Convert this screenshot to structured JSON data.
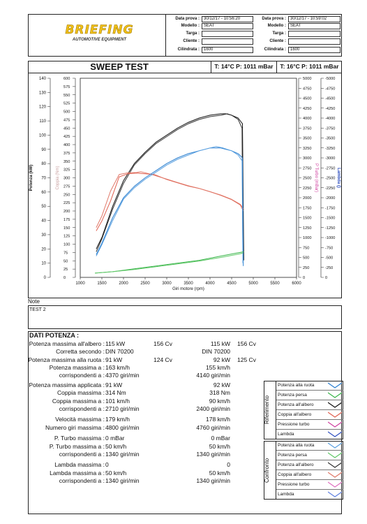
{
  "header": {
    "logo_text": "BRIEFING",
    "logo_sub": "AUTOMOTIVE EQUIPMENT",
    "labels": {
      "data": "Data prova :",
      "modello": "Modello :",
      "targa": "Targa :",
      "cliente": "Cliente :",
      "cilindrata": "Cilindrata :"
    },
    "test1": {
      "data": "30/12/17 - 10:56:20",
      "modello": "SEAT",
      "targa": "",
      "cliente": "",
      "cilindrata": "1600"
    },
    "test2": {
      "data": "30/12/17 - 10:59:02",
      "modello": "SEAT",
      "targa": "",
      "cliente": "",
      "cilindrata": "1600"
    }
  },
  "title": {
    "text": "SWEEP TEST",
    "cond1": "T: 14°C P: 1011 mBar",
    "cond2": "T: 16°C P: 1011 mBar"
  },
  "chart_data": {
    "type": "line",
    "xlabel": "Giri motore (rpm)",
    "xlim": [
      1000,
      6000
    ],
    "x_ticks": [
      "1000",
      "1500",
      "2000",
      "2500",
      "3000",
      "3500",
      "4000",
      "4500",
      "5000",
      "5500",
      "6000"
    ],
    "axes": {
      "potenza": {
        "label": "Potenza (kW)",
        "ticks": [
          "0",
          "10",
          "20",
          "30",
          "40",
          "50",
          "60",
          "70",
          "80",
          "90",
          "100",
          "110",
          "120",
          "130",
          "140"
        ],
        "ylim": [
          0,
          140
        ]
      },
      "coppia": {
        "label": "Coppia (Nm)",
        "ticks": [
          "0",
          "25",
          "50",
          "75",
          "100",
          "125",
          "150",
          "175",
          "200",
          "225",
          "250",
          "275",
          "300",
          "325",
          "350",
          "375",
          "400",
          "425",
          "450",
          "475",
          "500",
          "525",
          "550",
          "575",
          "600"
        ],
        "ylim": [
          0,
          600
        ]
      },
      "pturbo": {
        "label": "P Turbo (mBar)",
        "ticks": [
          "0",
          "250",
          "500",
          "750",
          "1000",
          "1250",
          "1500",
          "1750",
          "2000",
          "2250",
          "2500",
          "2750",
          "3000",
          "3250",
          "3500",
          "3750",
          "4000",
          "4250",
          "4500",
          "4750",
          "5000"
        ],
        "ylim": [
          0,
          5000
        ]
      },
      "lambda": {
        "label": "Lambda ()",
        "ticks": [
          "0",
          "-250",
          "-500",
          "-750",
          "-1000",
          "-1250",
          "-1500",
          "-1750",
          "-2000",
          "-2250",
          "-2500",
          "-2750",
          "-3000",
          "-3250",
          "-3500",
          "-3750",
          "-4000",
          "-4250",
          "-4500",
          "-4750",
          "-5000"
        ],
        "ylim": [
          0,
          -5000
        ]
      }
    },
    "series": [
      {
        "name": "Potenza all'albero",
        "axis": "potenza",
        "color": "#111111",
        "x": [
          1370,
          1500,
          1750,
          2000,
          2250,
          2500,
          2750,
          3000,
          3250,
          3500,
          3750,
          4000,
          4250,
          4370,
          4500,
          4650,
          4750,
          4780
        ],
        "y": [
          20,
          28,
          50,
          68,
          80,
          88,
          95,
          100,
          105,
          109,
          112,
          114,
          115,
          115,
          114,
          112,
          108,
          12
        ]
      },
      {
        "name": "Potenza all'albero (confronto)",
        "axis": "potenza",
        "color": "#333333",
        "x": [
          1370,
          1500,
          1750,
          2000,
          2250,
          2500,
          2750,
          3000,
          3250,
          3500,
          3750,
          4000,
          4250,
          4400,
          4500,
          4650,
          4740,
          4760
        ],
        "y": [
          18,
          27,
          48,
          66,
          79,
          87,
          94,
          99,
          104,
          108,
          111,
          113,
          114,
          115,
          114,
          111,
          105,
          15
        ]
      },
      {
        "name": "Coppia all'albero",
        "axis": "coppia",
        "color": "#e06050",
        "x": [
          1370,
          1500,
          1700,
          1900,
          2100,
          2300,
          2500,
          2710,
          3000,
          3250,
          3500,
          3750,
          4000,
          4250,
          4500,
          4700,
          4780
        ],
        "y": [
          140,
          170,
          230,
          303,
          312,
          314,
          312,
          310,
          295,
          285,
          275,
          268,
          258,
          248,
          235,
          220,
          205
        ]
      },
      {
        "name": "Coppia all'albero (confronto)",
        "axis": "coppia",
        "color": "#e07868",
        "x": [
          1370,
          1500,
          1700,
          1900,
          2100,
          2300,
          2400,
          2600,
          3000,
          3250,
          3500,
          3750,
          4000,
          4250,
          4500,
          4700,
          4770
        ],
        "y": [
          150,
          185,
          260,
          310,
          315,
          316,
          318,
          312,
          296,
          286,
          276,
          268,
          258,
          247,
          234,
          218,
          200
        ]
      },
      {
        "name": "Potenza alla ruota",
        "axis": "potenza",
        "color": "#2a7fd0",
        "x": [
          1370,
          1500,
          1750,
          2000,
          2250,
          2500,
          2750,
          3000,
          3250,
          3500,
          3750,
          4000,
          4250,
          4370,
          4500,
          4650,
          4750,
          4770
        ],
        "y": [
          16,
          24,
          42,
          56,
          64,
          70,
          75,
          80,
          84,
          87,
          89,
          91,
          91,
          90,
          89,
          87,
          84,
          8
        ]
      },
      {
        "name": "Potenza alla ruota (confronto)",
        "axis": "potenza",
        "color": "#5aa0e0",
        "x": [
          1370,
          1500,
          1750,
          2000,
          2250,
          2500,
          2750,
          3000,
          3250,
          3500,
          3750,
          4000,
          4140,
          4300,
          4500,
          4650,
          4740,
          4760
        ],
        "y": [
          15,
          23,
          40,
          55,
          63,
          69,
          74,
          79,
          83,
          86,
          89,
          91,
          92,
          91,
          89,
          86,
          82,
          10
        ]
      },
      {
        "name": "Potenza persa",
        "axis": "potenza",
        "color": "#39b54a",
        "x": [
          1340,
          1750,
          2250,
          2750,
          3250,
          3750,
          4250,
          4600,
          4780
        ],
        "y": [
          3,
          4,
          6,
          8,
          10,
          12,
          15,
          17,
          18
        ]
      },
      {
        "name": "Potenza persa (confronto)",
        "axis": "potenza",
        "color": "#60c868",
        "x": [
          1340,
          1750,
          2250,
          2750,
          3250,
          3750,
          4250,
          4600,
          4760
        ],
        "y": [
          3,
          4,
          5.5,
          7.5,
          9.5,
          11.5,
          14,
          16,
          17
        ]
      }
    ]
  },
  "note": {
    "label": "Note",
    "text": "TEST 2"
  },
  "dati": {
    "title": "DATI POTENZA :",
    "rows": [
      {
        "l": "Potenza massima all'albero :",
        "v1": "115 kW",
        "c1": "156 Cv",
        "v2": "115 kW",
        "c2": "156 Cv"
      },
      {
        "l": "Corretta secondo :",
        "v1": "DIN 70200",
        "c1": "",
        "v2": "DIN 70200",
        "c2": ""
      },
      {
        "l": "Potenza massima alla ruota :",
        "v1": "91 kW",
        "c1": "124 Cv",
        "v2": "92 kW",
        "c2": "125 Cv"
      },
      {
        "l": "Potenza massima a :",
        "v1": "163 km/h",
        "c1": "",
        "v2": "155 km/h",
        "c2": ""
      },
      {
        "l": "corrispondenti a :",
        "v1": "4370 giri/min",
        "c1": "",
        "v2": "4140 giri/min",
        "c2": ""
      },
      {
        "l": "Potenza massima applicata :",
        "v1": "91 kW",
        "c1": "",
        "v2": "92 kW",
        "c2": ""
      },
      {
        "l": "Coppia massima :",
        "v1": "314 Nm",
        "c1": "",
        "v2": "318 Nm",
        "c2": ""
      },
      {
        "l": "Coppia massima a :",
        "v1": "101 km/h",
        "c1": "",
        "v2": "90 km/h",
        "c2": ""
      },
      {
        "l": "corrispondenti a :",
        "v1": "2710 giri/min",
        "c1": "",
        "v2": "2400 giri/min",
        "c2": ""
      },
      {
        "l": "Velocità massima :",
        "v1": "179 km/h",
        "c1": "",
        "v2": "178 km/h",
        "c2": ""
      },
      {
        "l": "Numero giri massima :",
        "v1": "4800 giri/min",
        "c1": "",
        "v2": "4760 giri/min",
        "c2": ""
      },
      {
        "l": "P. Turbo massima :",
        "v1": "0 mBar",
        "c1": "",
        "v2": "0 mBar",
        "c2": ""
      },
      {
        "l": "P. Turbo massima a :",
        "v1": "50 km/h",
        "c1": "",
        "v2": "50 km/h",
        "c2": ""
      },
      {
        "l": "corrispondenti a :",
        "v1": "1340 giri/min",
        "c1": "",
        "v2": "1340 giri/min",
        "c2": ""
      },
      {
        "l": "Lambda massima :",
        "v1": "0",
        "c1": "",
        "v2": "0",
        "c2": ""
      },
      {
        "l": "Lambda massima a :",
        "v1": "50 km/h",
        "c1": "",
        "v2": "50 km/h",
        "c2": ""
      },
      {
        "l": "corrispondenti a :",
        "v1": "1340 giri/min",
        "c1": "",
        "v2": "1340 giri/min",
        "c2": ""
      }
    ]
  },
  "legend": {
    "riferimento": {
      "title": "Riferimento",
      "items": [
        {
          "label": "Potenza alla ruota",
          "color": "#2a7fd0"
        },
        {
          "label": "Potenza persa",
          "color": "#39b54a"
        },
        {
          "label": "Potenza all'albero",
          "color": "#111111"
        },
        {
          "label": "Coppia all'albero",
          "color": "#e06050"
        },
        {
          "label": "Pressione turbo",
          "color": "#d040a0"
        },
        {
          "label": "Lambda",
          "color": "#3050c0"
        }
      ]
    },
    "confronto": {
      "title": "Confronto",
      "items": [
        {
          "label": "Potenza alla ruota",
          "color": "#5aa0e0"
        },
        {
          "label": "Potenza persa",
          "color": "#60c868"
        },
        {
          "label": "Potenza all'albero",
          "color": "#333333"
        },
        {
          "label": "Coppia all'albero",
          "color": "#e07868"
        },
        {
          "label": "Pressione turbo",
          "color": "#e070c0"
        },
        {
          "label": "Lambda",
          "color": "#6080e0"
        }
      ]
    }
  }
}
